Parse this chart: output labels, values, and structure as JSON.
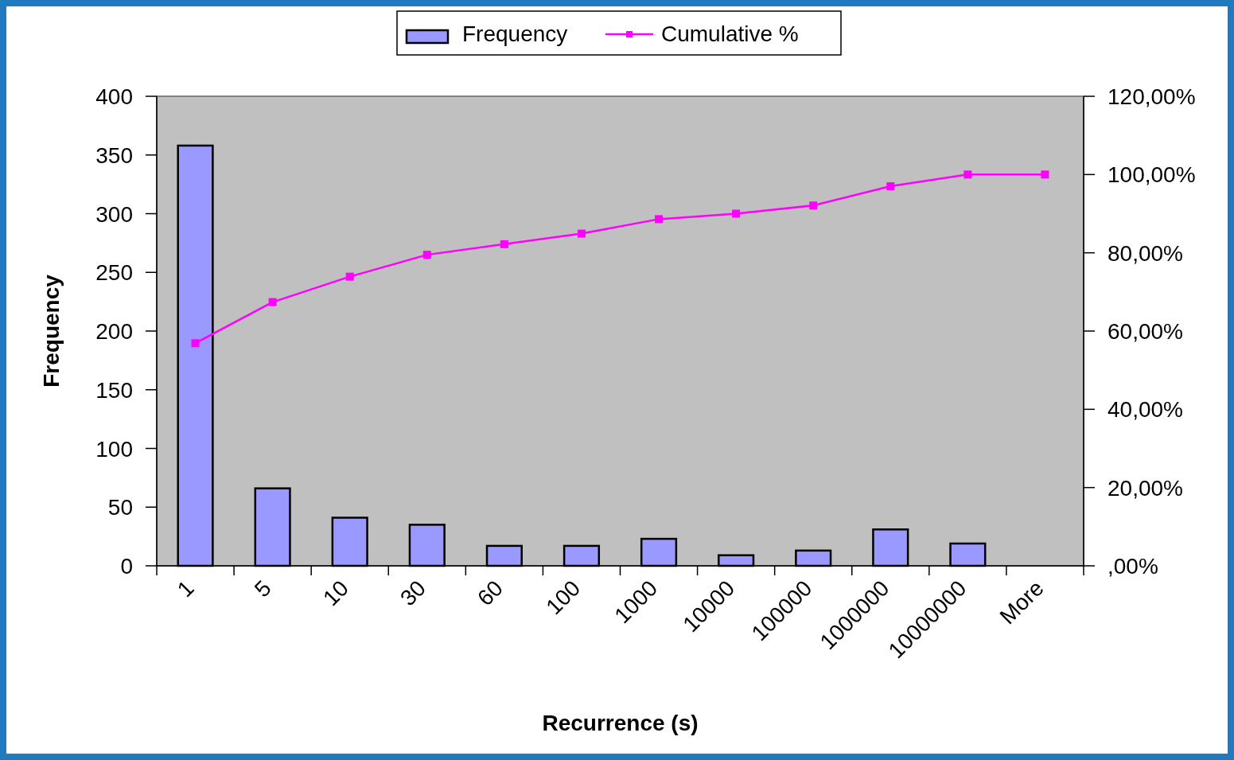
{
  "chart_data": {
    "type": "bar",
    "xlabel": "Recurrence (s)",
    "ylabel": "Frequency",
    "categories": [
      "1",
      "5",
      "10",
      "30",
      "60",
      "100",
      "1000",
      "10000",
      "100000",
      "1000000",
      "10000000",
      "More"
    ],
    "series": [
      {
        "name": "Frequency",
        "color": "#9999ff",
        "values": [
          358,
          66,
          41,
          35,
          17,
          17,
          23,
          9,
          13,
          31,
          19,
          0
        ]
      },
      {
        "name": "Cumulative %",
        "type": "line",
        "axis": "y2",
        "color": "#ff00ff",
        "values": [
          56.9,
          67.4,
          73.9,
          79.5,
          82.2,
          84.9,
          88.6,
          90.0,
          92.1,
          97.0,
          100,
          100
        ]
      }
    ],
    "ylim": [
      0,
      400
    ],
    "yticks": [
      0,
      50,
      100,
      150,
      200,
      250,
      300,
      350,
      400
    ],
    "y2lim": [
      0,
      120
    ],
    "y2ticks": [
      {
        "value": 0,
        "label": ",00%"
      },
      {
        "value": 20,
        "label": "20,00%"
      },
      {
        "value": 40,
        "label": "40,00%"
      },
      {
        "value": 60,
        "label": "60,00%"
      },
      {
        "value": 80,
        "label": "80,00%"
      },
      {
        "value": 100,
        "label": "100,00%"
      },
      {
        "value": 120,
        "label": "120,00%"
      }
    ],
    "legend": "top",
    "marker": "square",
    "grid": false
  }
}
